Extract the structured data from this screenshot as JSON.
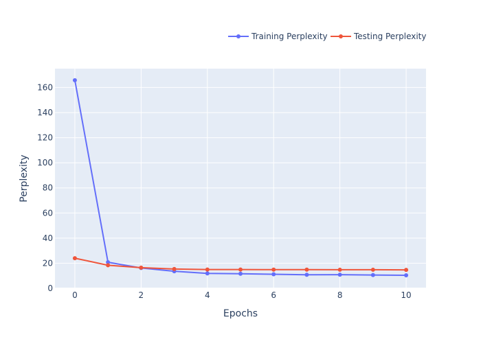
{
  "chart_data": {
    "type": "line",
    "title": "",
    "xlabel": "Epochs",
    "ylabel": "Perplexity",
    "x": [
      0,
      1,
      2,
      3,
      4,
      5,
      6,
      7,
      8,
      9,
      10
    ],
    "xlim": [
      -0.6,
      10.6
    ],
    "ylim": [
      0,
      175
    ],
    "xticks": [
      0,
      2,
      4,
      6,
      8,
      10
    ],
    "yticks": [
      0,
      20,
      40,
      60,
      80,
      100,
      120,
      140,
      160
    ],
    "grid": true,
    "legend_position": "top-right",
    "colors": {
      "plot_background": "#E5ECF6",
      "grid": "#ffffff",
      "text": "#2a3f5f",
      "axis_title": "#2a3f5f"
    },
    "series": [
      {
        "name": "Training Perplexity",
        "color": "#636EFA",
        "values": [
          165.8,
          20.8,
          16.2,
          13.6,
          11.9,
          11.6,
          11.2,
          10.8,
          10.9,
          10.6,
          10.4
        ]
      },
      {
        "name": "Testing Perplexity",
        "color": "#EF553B",
        "values": [
          24.0,
          18.4,
          16.5,
          15.4,
          15.0,
          15.0,
          14.9,
          14.9,
          14.8,
          14.8,
          14.7
        ]
      }
    ]
  }
}
